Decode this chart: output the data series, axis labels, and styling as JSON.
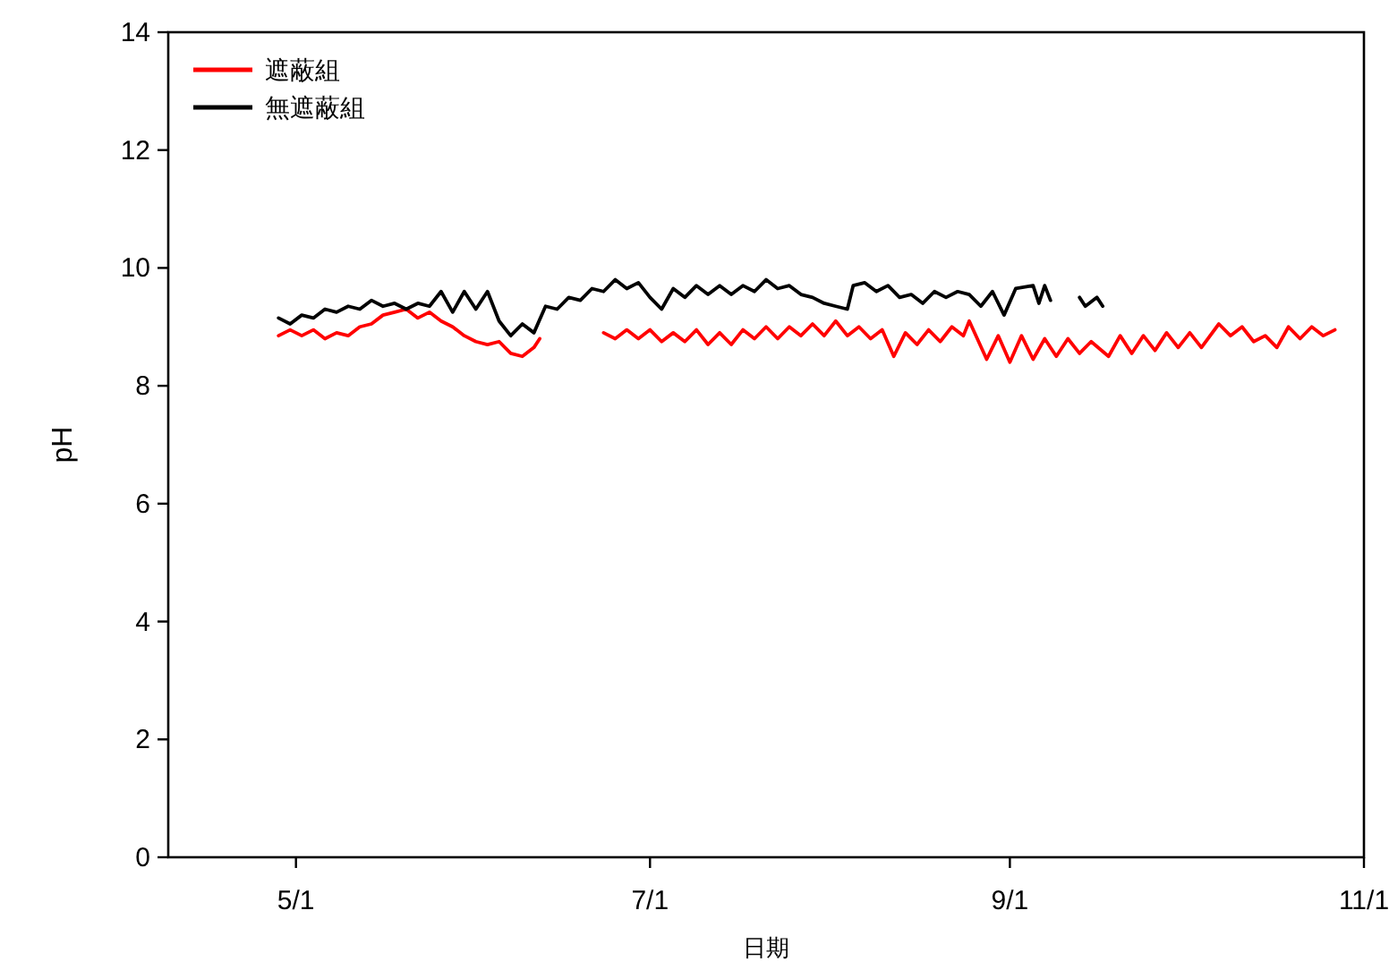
{
  "chart_data": {
    "type": "line",
    "xlabel": "日期",
    "ylabel": "pH",
    "legend": "top left",
    "xlim": [
      "--04-09",
      "--11-01"
    ],
    "xticks": [
      {
        "value": "--05-01",
        "label": "5/1"
      },
      {
        "value": "--07-01",
        "label": "7/1"
      },
      {
        "value": "--09-01",
        "label": "9/1"
      },
      {
        "value": "--11-01",
        "label": "11/1"
      }
    ],
    "ylim": [
      0,
      14
    ],
    "yticks": [
      0,
      2,
      4,
      6,
      8,
      10,
      12,
      14
    ],
    "series": [
      {
        "name": "遮蔽組",
        "color": "#ff0000",
        "x": [
          "--04-28",
          "--04-30",
          "--05-02",
          "--05-04",
          "--05-06",
          "--05-08",
          "--05-10",
          "--05-12",
          "--05-14",
          "--05-16",
          "--05-18",
          "--05-20",
          "--05-22",
          "--05-24",
          "--05-26",
          "--05-28",
          "--05-30",
          "--06-01",
          "--06-03",
          "--06-05",
          "--06-07",
          "--06-09",
          "--06-11",
          "--06-12",
          "--06-23",
          "--06-25",
          "--06-27",
          "--06-29",
          "--07-01",
          "--07-03",
          "--07-05",
          "--07-07",
          "--07-09",
          "--07-11",
          "--07-13",
          "--07-15",
          "--07-17",
          "--07-19",
          "--07-21",
          "--07-23",
          "--07-25",
          "--07-27",
          "--07-29",
          "--07-31",
          "--08-02",
          "--08-04",
          "--08-06",
          "--08-08",
          "--08-10",
          "--08-12",
          "--08-14",
          "--08-16",
          "--08-18",
          "--08-20",
          "--08-22",
          "--08-24",
          "--08-25",
          "--08-28",
          "--08-30",
          "--09-01",
          "--09-03",
          "--09-05",
          "--09-07",
          "--09-09",
          "--09-11",
          "--09-13",
          "--09-15",
          "--09-18",
          "--09-20",
          "--09-22",
          "--09-24",
          "--09-26",
          "--09-28",
          "--09-30",
          "--10-02",
          "--10-04",
          "--10-07",
          "--10-09",
          "--10-11",
          "--10-13",
          "--10-15",
          "--10-17",
          "--10-19",
          "--10-21",
          "--10-23",
          "--10-25",
          "--10-27"
        ],
        "values": [
          8.85,
          8.95,
          8.85,
          8.95,
          8.8,
          8.9,
          8.85,
          9.0,
          9.05,
          9.2,
          9.25,
          9.3,
          9.15,
          9.25,
          9.1,
          9.0,
          8.85,
          8.75,
          8.7,
          8.75,
          8.55,
          8.5,
          8.65,
          8.8,
          8.9,
          8.8,
          8.95,
          8.8,
          8.95,
          8.75,
          8.9,
          8.75,
          8.95,
          8.7,
          8.9,
          8.7,
          8.95,
          8.8,
          9.0,
          8.8,
          9.0,
          8.85,
          9.05,
          8.85,
          9.1,
          8.85,
          9.0,
          8.8,
          8.95,
          8.5,
          8.9,
          8.7,
          8.95,
          8.75,
          9.0,
          8.85,
          9.1,
          8.45,
          8.85,
          8.4,
          8.85,
          8.45,
          8.8,
          8.5,
          8.8,
          8.55,
          8.75,
          8.5,
          8.85,
          8.55,
          8.85,
          8.6,
          8.9,
          8.65,
          8.9,
          8.65,
          9.05,
          8.85,
          9.0,
          8.75,
          8.85,
          8.65,
          9.0,
          8.8,
          9.0,
          8.85,
          8.95
        ]
      },
      {
        "name": "無遮蔽組",
        "color": "#000000",
        "x": [
          "--04-28",
          "--04-30",
          "--05-02",
          "--05-04",
          "--05-06",
          "--05-08",
          "--05-10",
          "--05-12",
          "--05-14",
          "--05-16",
          "--05-18",
          "--05-20",
          "--05-22",
          "--05-24",
          "--05-26",
          "--05-28",
          "--05-30",
          "--06-01",
          "--06-03",
          "--06-05",
          "--06-07",
          "--06-09",
          "--06-11",
          "--06-13",
          "--06-15",
          "--06-17",
          "--06-19",
          "--06-21",
          "--06-23",
          "--06-25",
          "--06-27",
          "--06-29",
          "--07-01",
          "--07-03",
          "--07-05",
          "--07-07",
          "--07-09",
          "--07-11",
          "--07-13",
          "--07-15",
          "--07-17",
          "--07-19",
          "--07-21",
          "--07-23",
          "--07-25",
          "--07-27",
          "--07-29",
          "--07-31",
          "--08-02",
          "--08-04",
          "--08-05",
          "--08-07",
          "--08-09",
          "--08-11",
          "--08-13",
          "--08-15",
          "--08-17",
          "--08-19",
          "--08-21",
          "--08-23",
          "--08-25",
          "--08-27",
          "--08-29",
          "--08-31",
          "--09-02",
          "--09-05",
          "--09-06",
          "--09-07",
          "--09-08",
          "--09-13",
          "--09-14",
          "--09-16",
          "--09-17"
        ],
        "values": [
          9.15,
          9.05,
          9.2,
          9.15,
          9.3,
          9.25,
          9.35,
          9.3,
          9.45,
          9.35,
          9.4,
          9.3,
          9.4,
          9.35,
          9.6,
          9.25,
          9.6,
          9.3,
          9.6,
          9.1,
          8.85,
          9.05,
          8.9,
          9.35,
          9.3,
          9.5,
          9.45,
          9.65,
          9.6,
          9.8,
          9.65,
          9.75,
          9.5,
          9.3,
          9.65,
          9.5,
          9.7,
          9.55,
          9.7,
          9.55,
          9.7,
          9.6,
          9.8,
          9.65,
          9.7,
          9.55,
          9.5,
          9.4,
          9.35,
          9.3,
          9.7,
          9.75,
          9.6,
          9.7,
          9.5,
          9.55,
          9.4,
          9.6,
          9.5,
          9.6,
          9.55,
          9.35,
          9.6,
          9.2,
          9.65,
          9.7,
          9.4,
          9.7,
          9.45,
          9.5,
          9.35,
          9.5,
          9.35
        ]
      }
    ]
  }
}
